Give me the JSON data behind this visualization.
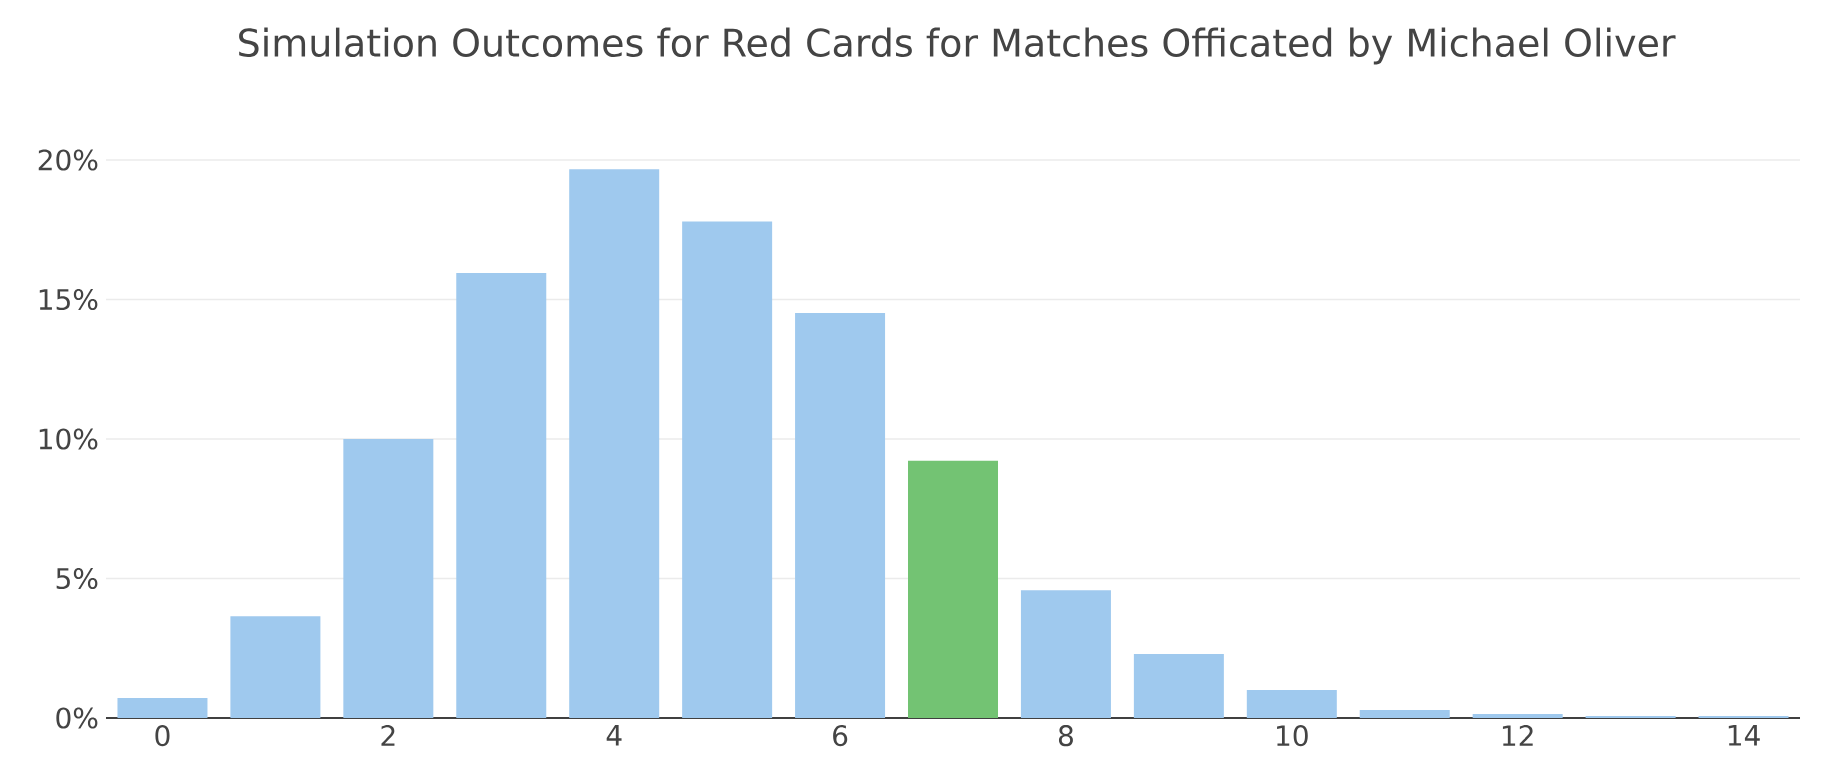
{
  "chart_data": {
    "type": "bar",
    "title": "Simulation Outcomes for Red Cards for Matches Officated by Michael Oliver",
    "categories": [
      "0",
      null,
      "2",
      null,
      "4",
      null,
      "6",
      null,
      "8",
      null,
      "10",
      null,
      "12",
      null,
      "14"
    ],
    "values": [
      0.72,
      3.65,
      10.0,
      15.95,
      19.67,
      17.8,
      14.52,
      9.22,
      4.58,
      2.29,
      1.0,
      0.29,
      0.14,
      0.07,
      0.07
    ],
    "colors": [
      "#9fc9ee",
      "#9fc9ee",
      "#9fc9ee",
      "#9fc9ee",
      "#9fc9ee",
      "#9fc9ee",
      "#9fc9ee",
      "#73c373",
      "#9fc9ee",
      "#9fc9ee",
      "#9fc9ee",
      "#9fc9ee",
      "#9fc9ee",
      "#9fc9ee",
      "#9fc9ee"
    ],
    "ylim": [
      0,
      20
    ],
    "yticks": [
      {
        "value": 0,
        "label": "0%"
      },
      {
        "value": 5,
        "label": "5%"
      },
      {
        "value": 10,
        "label": "10%"
      },
      {
        "value": 15,
        "label": "15%"
      },
      {
        "value": 20,
        "label": "20%"
      }
    ],
    "grid": "y"
  }
}
